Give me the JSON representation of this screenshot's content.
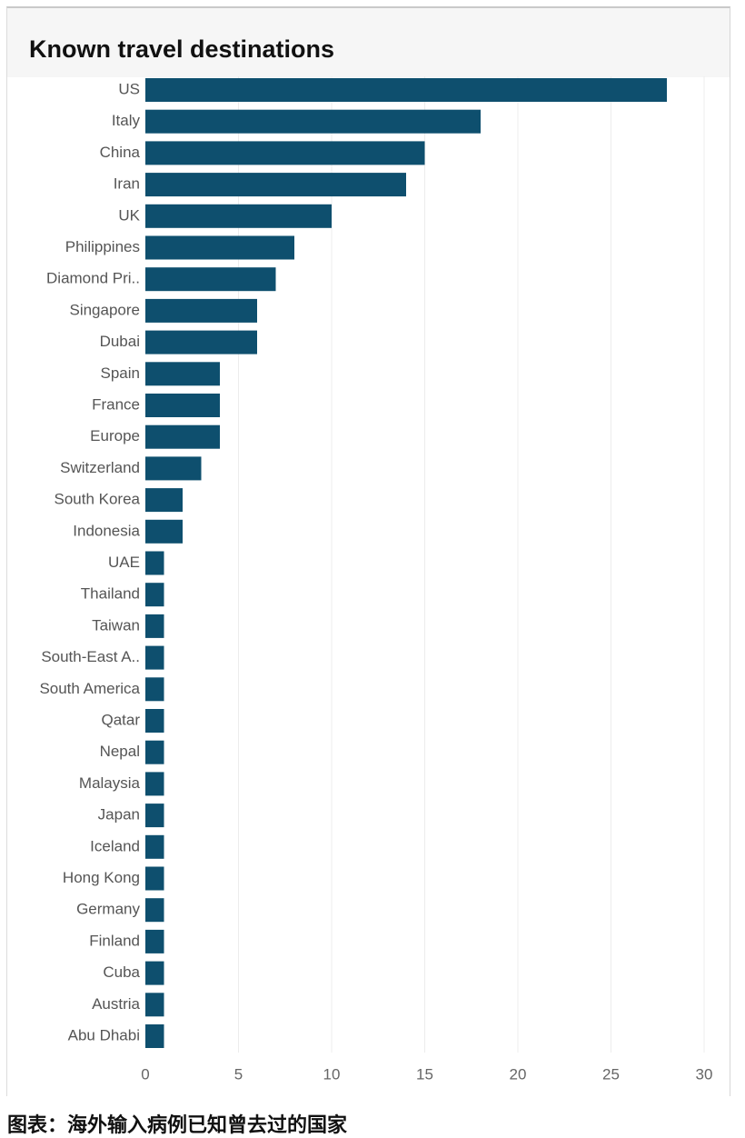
{
  "chart_data": {
    "type": "bar",
    "orientation": "horizontal",
    "title": "Known travel destinations",
    "categories": [
      "US",
      "Italy",
      "China",
      "Iran",
      "UK",
      "Philippines",
      "Diamond Pri..",
      "Singapore",
      "Dubai",
      "Spain",
      "France",
      "Europe",
      "Switzerland",
      "South Korea",
      "Indonesia",
      "UAE",
      "Thailand",
      "Taiwan",
      "South-East A..",
      "South America",
      "Qatar",
      "Nepal",
      "Malaysia",
      "Japan",
      "Iceland",
      "Hong Kong",
      "Germany",
      "Finland",
      "Cuba",
      "Austria",
      "Abu Dhabi"
    ],
    "values": [
      28,
      18,
      15,
      14,
      10,
      8,
      7,
      6,
      6,
      4,
      4,
      4,
      3,
      2,
      2,
      1,
      1,
      1,
      1,
      1,
      1,
      1,
      1,
      1,
      1,
      1,
      1,
      1,
      1,
      1,
      1
    ],
    "xlim": [
      0,
      30
    ],
    "x_ticks": [
      0,
      5,
      10,
      15,
      20,
      25,
      30
    ],
    "bar_color": "#0e4f6e",
    "grid": true,
    "grid_color": "#ececec"
  },
  "caption": "图表：海外输入病例已知曾去过的国家"
}
